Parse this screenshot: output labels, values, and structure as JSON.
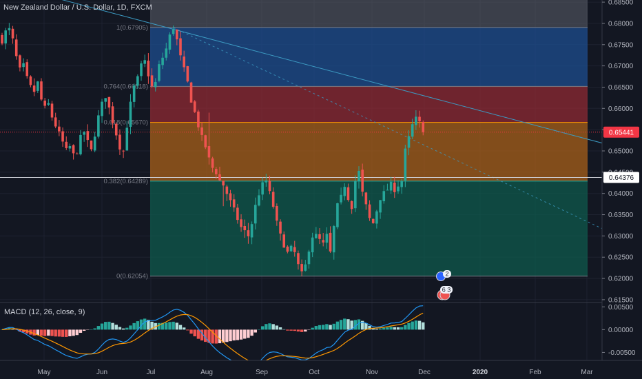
{
  "header": {
    "title": "New Zealand Dollar / U.S. Dollar, 1D, FXCM"
  },
  "macd_panel": {
    "title": "MACD (12, 26, close, 9)"
  },
  "colors": {
    "background": "#131722",
    "up": "#26a69a",
    "down": "#ef5350",
    "macd_line": "#2196f3",
    "signal_line": "#ff9800",
    "trendline": "#3c9bc3",
    "current_price": "#f23645"
  },
  "chart_data": {
    "type": "candlestick",
    "title": "New Zealand Dollar / U.S. Dollar, 1D, FXCM",
    "price_axis": {
      "ylim": [
        0.6145,
        0.6855
      ],
      "ticks": [
        "0.68500",
        "0.68000",
        "0.67500",
        "0.67000",
        "0.66500",
        "0.66000",
        "0.65500",
        "0.65000",
        "0.64500",
        "0.64000",
        "0.63500",
        "0.63000",
        "0.62500",
        "0.62000",
        "0.61500"
      ]
    },
    "time_axis": {
      "ticks": [
        {
          "label": "May",
          "bold": false
        },
        {
          "label": "Jun",
          "bold": false
        },
        {
          "label": "Jul",
          "bold": false
        },
        {
          "label": "Aug",
          "bold": false
        },
        {
          "label": "Sep",
          "bold": false
        },
        {
          "label": "Oct",
          "bold": false
        },
        {
          "label": "Nov",
          "bold": false
        },
        {
          "label": "Dec",
          "bold": false
        },
        {
          "label": "2020",
          "bold": true
        },
        {
          "label": "Feb",
          "bold": false
        },
        {
          "label": "Mar",
          "bold": false
        }
      ]
    },
    "close_path": [
      [
        0,
        0.676
      ],
      [
        1,
        0.678
      ],
      [
        2,
        0.6785
      ],
      [
        3,
        0.676
      ],
      [
        4,
        0.672
      ],
      [
        5,
        0.669
      ],
      [
        6,
        0.67
      ],
      [
        7,
        0.667
      ],
      [
        8,
        0.665
      ],
      [
        9,
        0.664
      ],
      [
        10,
        0.666
      ],
      [
        11,
        0.662
      ],
      [
        12,
        0.66
      ],
      [
        13,
        0.661
      ],
      [
        14,
        0.658
      ],
      [
        15,
        0.656
      ],
      [
        16,
        0.654
      ],
      [
        17,
        0.652
      ],
      [
        18,
        0.65
      ],
      [
        19,
        0.651
      ],
      [
        20,
        0.649
      ],
      [
        21,
        0.65
      ],
      [
        22,
        0.653
      ],
      [
        23,
        0.6545
      ],
      [
        24,
        0.652
      ],
      [
        25,
        0.65
      ],
      [
        26,
        0.654
      ],
      [
        27,
        0.658
      ],
      [
        28,
        0.661
      ],
      [
        29,
        0.663
      ],
      [
        30,
        0.66
      ],
      [
        31,
        0.657
      ],
      [
        32,
        0.654
      ],
      [
        33,
        0.651
      ],
      [
        34,
        0.65
      ],
      [
        35,
        0.656
      ],
      [
        36,
        0.661
      ],
      [
        37,
        0.665
      ],
      [
        38,
        0.667
      ],
      [
        39,
        0.67
      ],
      [
        40,
        0.671
      ],
      [
        41,
        0.668
      ],
      [
        42,
        0.665
      ],
      [
        43,
        0.666
      ],
      [
        44,
        0.67
      ],
      [
        45,
        0.672
      ],
      [
        46,
        0.674
      ],
      [
        47,
        0.677
      ],
      [
        48,
        0.679
      ],
      [
        49,
        0.676
      ],
      [
        50,
        0.672
      ],
      [
        51,
        0.669
      ],
      [
        52,
        0.666
      ],
      [
        53,
        0.662
      ],
      [
        54,
        0.659
      ],
      [
        55,
        0.656
      ],
      [
        56,
        0.653
      ],
      [
        57,
        0.651
      ],
      [
        58,
        0.648
      ],
      [
        59,
        0.646
      ],
      [
        60,
        0.645
      ],
      [
        61,
        0.643
      ],
      [
        62,
        0.642
      ],
      [
        63,
        0.64
      ],
      [
        64,
        0.638
      ],
      [
        65,
        0.636
      ],
      [
        66,
        0.634
      ],
      [
        67,
        0.632
      ],
      [
        68,
        0.631
      ],
      [
        69,
        0.63
      ],
      [
        70,
        0.633
      ],
      [
        71,
        0.637
      ],
      [
        72,
        0.64
      ],
      [
        73,
        0.642
      ],
      [
        74,
        0.643
      ],
      [
        75,
        0.64
      ],
      [
        76,
        0.637
      ],
      [
        77,
        0.633
      ],
      [
        78,
        0.63
      ],
      [
        79,
        0.628
      ],
      [
        80,
        0.626
      ],
      [
        81,
        0.627
      ],
      [
        82,
        0.626
      ],
      [
        83,
        0.623
      ],
      [
        84,
        0.621
      ],
      [
        85,
        0.623
      ],
      [
        86,
        0.627
      ],
      [
        87,
        0.63
      ],
      [
        88,
        0.63
      ],
      [
        89,
        0.629
      ],
      [
        90,
        0.628
      ],
      [
        91,
        0.63
      ],
      [
        92,
        0.626
      ],
      [
        93,
        0.632
      ],
      [
        94,
        0.637
      ],
      [
        95,
        0.639
      ],
      [
        96,
        0.642
      ],
      [
        97,
        0.639
      ],
      [
        98,
        0.637
      ],
      [
        99,
        0.643
      ],
      [
        100,
        0.645
      ],
      [
        101,
        0.64
      ],
      [
        102,
        0.637
      ],
      [
        103,
        0.634
      ],
      [
        104,
        0.633
      ],
      [
        105,
        0.636
      ],
      [
        106,
        0.639
      ],
      [
        107,
        0.64
      ],
      [
        108,
        0.641
      ],
      [
        109,
        0.642
      ],
      [
        110,
        0.641
      ],
      [
        111,
        0.642
      ],
      [
        112,
        0.643
      ],
      [
        113,
        0.65
      ],
      [
        114,
        0.653
      ],
      [
        115,
        0.656
      ],
      [
        116,
        0.6575
      ],
      [
        117,
        0.6565
      ],
      [
        118,
        0.6544
      ]
    ],
    "fibonacci": {
      "levels": [
        {
          "label": "1(0.67905)",
          "value": 0.67905,
          "fill": "#1e4d8f"
        },
        {
          "label": "0.764(0.66518)",
          "value": 0.66518,
          "fill": "#8f2a33"
        },
        {
          "label": "0.618(0.65670)",
          "value": 0.6567,
          "fill": "#a8601a"
        },
        {
          "label": "0.382(0.64289)",
          "value": 0.64289,
          "fill": "#0f5a4c"
        },
        {
          "label": "0(0.62054)",
          "value": 0.62054,
          "fill": null
        }
      ],
      "top_band_value": 0.6855
    },
    "trendline": {
      "from": [
        -30,
        0.696
      ],
      "to": [
        198,
        0.6452
      ]
    },
    "dashed_line": {
      "from": [
        48,
        0.679
      ],
      "to": [
        198,
        0.62
      ]
    },
    "horizontal_level": {
      "value": 0.64376,
      "label": "0.64376"
    },
    "current_price": {
      "value": 0.65441,
      "label": "0.65441"
    },
    "event_badges": [
      {
        "label": "2"
      },
      {
        "label": "6 3"
      }
    ],
    "macd": {
      "ylim": [
        -0.0066,
        0.0058
      ],
      "ticks": [
        "0.00500",
        "0.00000",
        "-0.00500"
      ],
      "series": [
        {
          "name": "MACD",
          "values": []
        },
        {
          "name": "Signal",
          "values": []
        }
      ]
    }
  }
}
